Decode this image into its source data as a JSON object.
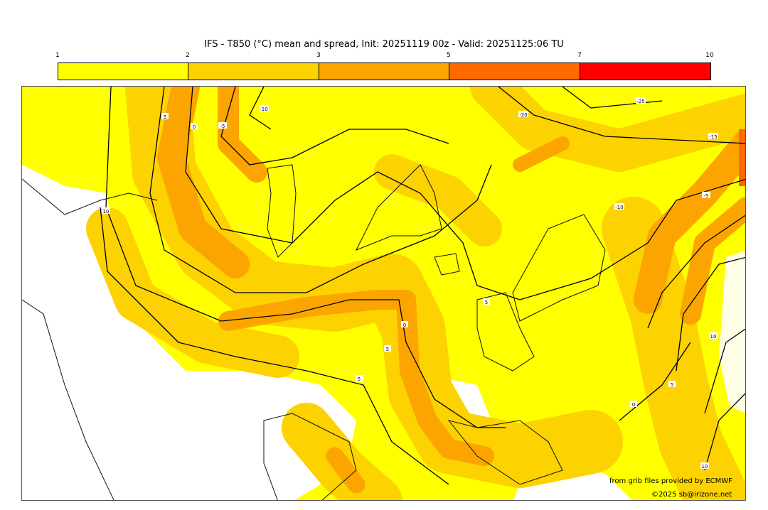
{
  "title": "IFS - T850 (°C) mean and spread, Init: 20251119 00z - Valid: 20251125:06 TU",
  "colorbar": {
    "ticks": [
      "1",
      "2",
      "3",
      "5",
      "7",
      "10"
    ],
    "colors": [
      "#ffff00",
      "#fcd200",
      "#fca500",
      "#ff6a00",
      "#ff0000"
    ]
  },
  "map": {
    "contour_labels": [
      "5",
      "0",
      "-5",
      "-10",
      "10",
      "-20",
      "-25",
      "-15",
      "-10",
      "-5",
      "5",
      "0",
      "5",
      "5",
      "10",
      "5",
      "0",
      "10"
    ]
  },
  "credits": {
    "source": "from grib files provided by ECMWF",
    "copyright": "©2025 sb@irizone.net"
  }
}
